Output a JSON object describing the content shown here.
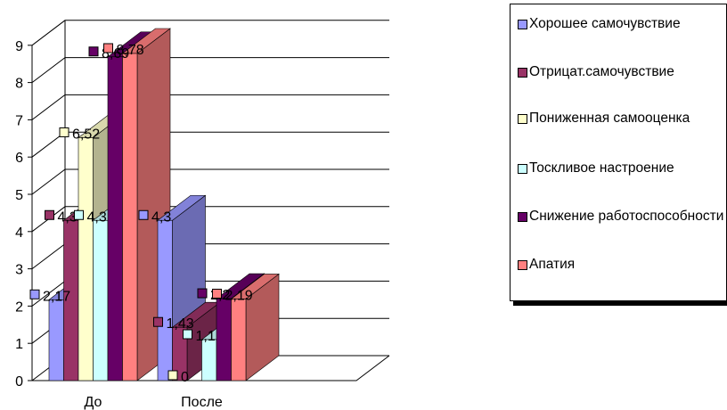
{
  "chart_data": {
    "type": "bar",
    "categories": [
      "До",
      "После"
    ],
    "ylim": [
      0,
      9
    ],
    "yticks": [
      "0",
      "1",
      "2",
      "3",
      "4",
      "5",
      "6",
      "7",
      "8",
      "9"
    ],
    "grid": true,
    "legend_position": "right",
    "series": [
      {
        "name": "Хорошее самочувствие",
        "values": [
          2.17,
          4.3
        ],
        "labels": [
          "2,17",
          "4,3"
        ],
        "color": "#9999ff",
        "marker": "#9999ff"
      },
      {
        "name": "Отрицат.самочувствие",
        "values": [
          4.3,
          1.43
        ],
        "labels": [
          "4,3",
          "1,43"
        ],
        "color": "#993366",
        "marker": "#993366"
      },
      {
        "name": "Пониженная самооценка",
        "values": [
          6.52,
          0
        ],
        "labels": [
          "6,52",
          "0"
        ],
        "color": "#ffffcc",
        "marker": "#ffffcc"
      },
      {
        "name": "Тоскливое настроение",
        "values": [
          4.3,
          1.1
        ],
        "labels": [
          "4,3",
          "1,1"
        ],
        "color": "#ccffff",
        "marker": "#ccffff"
      },
      {
        "name": "Снижение работоспособности",
        "values": [
          8.69,
          2.2
        ],
        "labels": [
          "8,69",
          "2,2"
        ],
        "color": "#660066",
        "marker": "#660066"
      },
      {
        "name": "Апатия",
        "values": [
          8.78,
          2.19
        ],
        "labels": [
          "8,78",
          "2,19"
        ],
        "color": "#ff8080",
        "marker": "#ff8080"
      }
    ]
  },
  "legend": {
    "items": [
      {
        "label": "Хорошее самочувствие",
        "color": "#9999ff"
      },
      {
        "label": "Отрицат.самочувствие",
        "color": "#993366"
      },
      {
        "label": "Пониженная самооценка",
        "color": "#ffffcc"
      },
      {
        "label": "Тоскливое настроение",
        "color": "#ccffff"
      },
      {
        "label": "Снижение работоспособности",
        "color": "#660066"
      },
      {
        "label": "Апатия",
        "color": "#ff8080"
      }
    ]
  }
}
